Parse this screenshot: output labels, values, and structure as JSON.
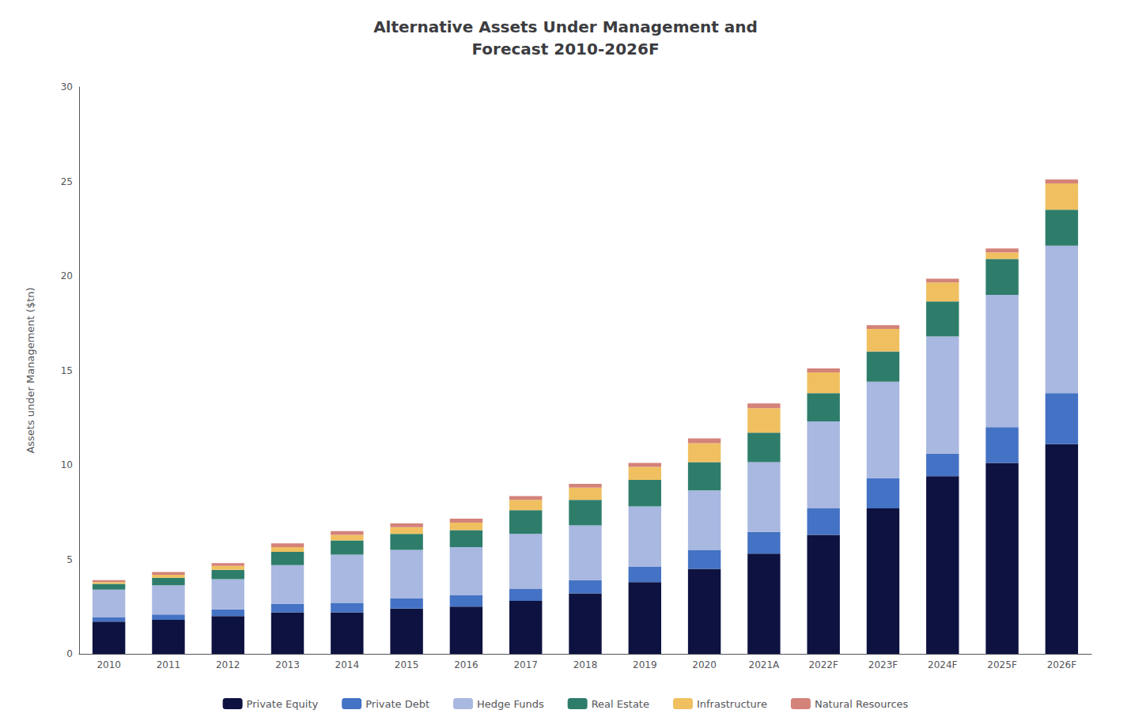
{
  "chart_data": {
    "type": "bar",
    "title": "Alternative Assets Under Management and\nForecast 2010-2026F",
    "ylabel": "Assets under Management ($tn)",
    "categories": [
      "2010",
      "2011",
      "2012",
      "2013",
      "2014",
      "2015",
      "2016",
      "2017",
      "2018",
      "2019",
      "2020",
      "2021A",
      "2022F",
      "2023F",
      "2024F",
      "2025F",
      "2026F"
    ],
    "series": [
      {
        "name": "Private Equity",
        "color": "#0d1240",
        "values": [
          1.7,
          1.8,
          2.0,
          2.2,
          2.2,
          2.4,
          2.5,
          2.8,
          3.2,
          3.8,
          4.5,
          5.3,
          6.3,
          7.7,
          9.4,
          10.1,
          11.1
        ]
      },
      {
        "name": "Private Debt",
        "color": "#4472c4",
        "values": [
          0.25,
          0.28,
          0.35,
          0.45,
          0.5,
          0.55,
          0.6,
          0.65,
          0.7,
          0.8,
          1.0,
          1.15,
          1.4,
          1.6,
          1.2,
          1.9,
          2.7
        ]
      },
      {
        "name": "Hedge Funds",
        "color": "#a8b8e0",
        "values": [
          1.45,
          1.55,
          1.6,
          2.05,
          2.55,
          2.55,
          2.55,
          2.9,
          2.9,
          3.2,
          3.15,
          3.7,
          4.6,
          5.1,
          6.2,
          7.0,
          7.8
        ]
      },
      {
        "name": "Real Estate",
        "color": "#2e7d6b",
        "values": [
          0.3,
          0.4,
          0.5,
          0.7,
          0.75,
          0.85,
          0.9,
          1.25,
          1.35,
          1.4,
          1.5,
          1.55,
          1.5,
          1.6,
          1.85,
          1.9,
          1.9
        ]
      },
      {
        "name": "Infrastructure",
        "color": "#f0c060",
        "values": [
          0.1,
          0.15,
          0.2,
          0.25,
          0.3,
          0.35,
          0.4,
          0.55,
          0.65,
          0.7,
          1.0,
          1.3,
          1.1,
          1.2,
          1.0,
          0.35,
          1.4
        ]
      },
      {
        "name": "Natural Resources",
        "color": "#d4827a",
        "values": [
          0.1,
          0.15,
          0.15,
          0.2,
          0.2,
          0.2,
          0.2,
          0.2,
          0.2,
          0.2,
          0.25,
          0.25,
          0.2,
          0.2,
          0.2,
          0.2,
          0.2
        ]
      }
    ],
    "ylim": [
      0,
      30
    ],
    "yticks": [
      0,
      5,
      10,
      15,
      20,
      25,
      30
    ],
    "grid": false,
    "legend": "bottom",
    "stacked": true
  }
}
